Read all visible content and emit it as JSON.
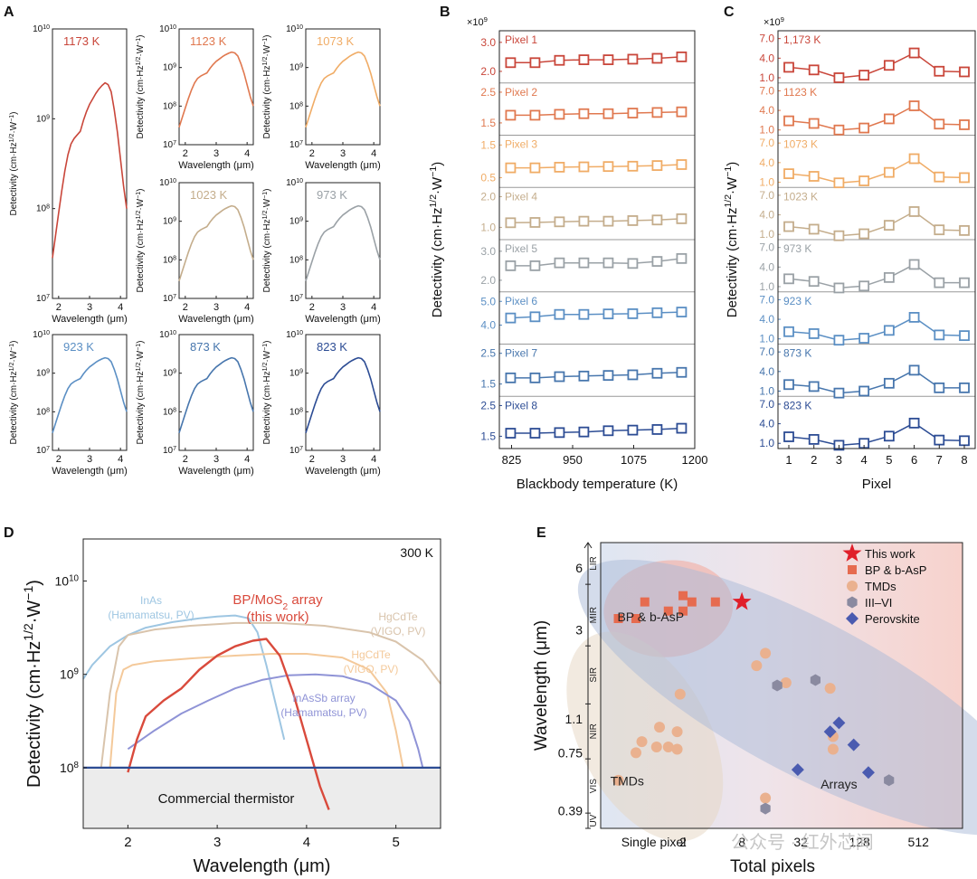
{
  "colors": {
    "k1173": "#c9463a",
    "k1123": "#e0784f",
    "k1073": "#f0ac66",
    "k1023": "#c4ad8c",
    "k973": "#9aa1a6",
    "k923": "#5b8fc4",
    "k873": "#4776ad",
    "k823": "#2c4c94"
  },
  "panel_letters": [
    "A",
    "B",
    "C",
    "D",
    "E"
  ],
  "watermark": "公众号 · 红外芯闻",
  "chart_data": [
    {
      "panel": "A",
      "type": "line",
      "xlabel": "Wavelength (μm)",
      "ylabel": "Detectivity (cm·Hz1/2·W−1)",
      "ylabel_main": "Detectivity (cm·Hz",
      "ylabel_sup1": "1/2",
      "ylabel_mid": "·W",
      "ylabel_sup2": "−1",
      "ylabel_end": ")",
      "xlim": [
        1.8,
        4.2
      ],
      "ylim_log": [
        7,
        10
      ],
      "xticks": [
        "2",
        "3",
        "4"
      ],
      "yticks": [
        "10",
        "10",
        "10",
        "10"
      ],
      "ytick_exps": [
        "7",
        "8",
        "9",
        "10"
      ],
      "ytick_log": [
        7,
        8,
        9,
        10
      ],
      "curve": {
        "x": [
          1.8,
          1.9,
          2.0,
          2.1,
          2.2,
          2.3,
          2.4,
          2.5,
          2.6,
          2.7,
          2.8,
          2.9,
          3.0,
          3.1,
          3.2,
          3.3,
          3.4,
          3.5,
          3.6,
          3.7,
          3.8,
          3.9,
          4.0,
          4.1,
          4.2
        ],
        "log": [
          7.45,
          7.7,
          7.95,
          8.2,
          8.42,
          8.6,
          8.72,
          8.78,
          8.82,
          8.86,
          8.98,
          9.08,
          9.16,
          9.22,
          9.28,
          9.33,
          9.37,
          9.4,
          9.38,
          9.3,
          9.1,
          8.85,
          8.55,
          8.25,
          8.0
        ]
      },
      "subplots": [
        {
          "label": "1173 K",
          "color": "#c9463a"
        },
        {
          "label": "1123 K",
          "color": "#e0784f"
        },
        {
          "label": "1073 K",
          "color": "#f0ac66"
        },
        {
          "label": "1023 K",
          "color": "#c4ad8c"
        },
        {
          "label": "973 K",
          "color": "#9aa1a6"
        },
        {
          "label": "923 K",
          "color": "#5b8fc4"
        },
        {
          "label": "873 K",
          "color": "#4776ad"
        },
        {
          "label": "823 K",
          "color": "#2c4c94"
        }
      ]
    },
    {
      "panel": "B",
      "type": "line",
      "xlabel": "Blackbody temperature (K)",
      "ylabel": "Detectivity (cm·Hz1/2·W−1)",
      "multiplier": "×10",
      "multiplier_exp": "9",
      "xlim": [
        800,
        1200
      ],
      "xticks": [
        825,
        950,
        1075,
        1200
      ],
      "x": [
        823,
        873,
        923,
        973,
        1023,
        1073,
        1123,
        1173
      ],
      "series": [
        {
          "name": "Pixel 1",
          "color": "#c9463a",
          "ylim": [
            1.6,
            3.4
          ],
          "yticks": [
            "3.0",
            "2.0"
          ],
          "ytick_vals": [
            3.0,
            2.0
          ],
          "values": [
            2.3,
            2.3,
            2.38,
            2.4,
            2.4,
            2.42,
            2.45,
            2.5
          ]
        },
        {
          "name": "Pixel 2",
          "color": "#e0784f",
          "ylim": [
            1.1,
            2.8
          ],
          "yticks": [
            "2.5",
            "1.5"
          ],
          "ytick_vals": [
            2.5,
            1.5
          ],
          "values": [
            1.75,
            1.75,
            1.78,
            1.8,
            1.8,
            1.82,
            1.84,
            1.86
          ]
        },
        {
          "name": "Pixel 3",
          "color": "#f0ac66",
          "ylim": [
            0.2,
            1.8
          ],
          "yticks": [
            "1.5",
            "0.5"
          ],
          "ytick_vals": [
            1.5,
            0.5
          ],
          "values": [
            0.8,
            0.8,
            0.82,
            0.83,
            0.84,
            0.85,
            0.87,
            0.9
          ]
        },
        {
          "name": "Pixel 4",
          "color": "#c4ad8c",
          "ylim": [
            0.6,
            2.3
          ],
          "yticks": [
            "2.0",
            "1.0"
          ],
          "ytick_vals": [
            2.0,
            1.0
          ],
          "values": [
            1.15,
            1.16,
            1.18,
            1.2,
            1.2,
            1.22,
            1.24,
            1.28
          ]
        },
        {
          "name": "Pixel 5",
          "color": "#9aa1a6",
          "ylim": [
            1.6,
            3.4
          ],
          "yticks": [
            "3.0",
            "2.0"
          ],
          "ytick_vals": [
            3.0,
            2.0
          ],
          "values": [
            2.5,
            2.5,
            2.6,
            2.6,
            2.6,
            2.58,
            2.65,
            2.75
          ]
        },
        {
          "name": "Pixel 6",
          "color": "#5b8fc4",
          "ylim": [
            3.2,
            5.4
          ],
          "yticks": [
            "5.0",
            "4.0"
          ],
          "ytick_vals": [
            5.0,
            4.0
          ],
          "values": [
            4.3,
            4.35,
            4.45,
            4.45,
            4.47,
            4.48,
            4.52,
            4.55
          ]
        },
        {
          "name": "Pixel 7",
          "color": "#4776ad",
          "ylim": [
            1.1,
            2.8
          ],
          "yticks": [
            "2.5",
            "1.5"
          ],
          "ytick_vals": [
            2.5,
            1.5
          ],
          "values": [
            1.7,
            1.7,
            1.74,
            1.76,
            1.78,
            1.8,
            1.85,
            1.88
          ]
        },
        {
          "name": "Pixel 8",
          "color": "#2c4c94",
          "ylim": [
            1.1,
            2.8
          ],
          "yticks": [
            "2.5",
            "1.5"
          ],
          "ytick_vals": [
            2.5,
            1.5
          ],
          "values": [
            1.6,
            1.6,
            1.62,
            1.64,
            1.68,
            1.7,
            1.72,
            1.76
          ]
        }
      ]
    },
    {
      "panel": "C",
      "type": "line",
      "xlabel": "Pixel",
      "ylabel": "Detectivity (cm·Hz1/2·W−1)",
      "multiplier": "×10",
      "multiplier_exp": "9",
      "x": [
        1,
        2,
        3,
        4,
        5,
        6,
        7,
        8
      ],
      "xticks": [
        "1",
        "2",
        "3",
        "4",
        "5",
        "6",
        "7",
        "8"
      ],
      "ylim": [
        0.2,
        8.2
      ],
      "yticks": [
        "7.0",
        "4.0",
        "1.0"
      ],
      "ytick_vals": [
        7.0,
        4.0,
        1.0
      ],
      "series": [
        {
          "name": "1,173 K",
          "color": "#c9463a",
          "values": [
            2.6,
            2.2,
            1.0,
            1.4,
            2.9,
            4.8,
            2.0,
            1.9
          ]
        },
        {
          "name": "1123 K",
          "color": "#e0784f",
          "values": [
            2.4,
            2.0,
            1.0,
            1.3,
            2.7,
            4.7,
            1.9,
            1.8
          ]
        },
        {
          "name": "1073 K",
          "color": "#f0ac66",
          "values": [
            2.3,
            1.9,
            0.9,
            1.2,
            2.5,
            4.6,
            1.8,
            1.7
          ]
        },
        {
          "name": "1023 K",
          "color": "#c4ad8c",
          "values": [
            2.2,
            1.8,
            0.8,
            1.1,
            2.4,
            4.5,
            1.7,
            1.6
          ]
        },
        {
          "name": "973 K",
          "color": "#9aa1a6",
          "values": [
            2.2,
            1.8,
            0.8,
            1.1,
            2.4,
            4.4,
            1.6,
            1.6
          ]
        },
        {
          "name": "923 K",
          "color": "#5b8fc4",
          "values": [
            2.1,
            1.8,
            0.8,
            1.1,
            2.3,
            4.3,
            1.6,
            1.5
          ]
        },
        {
          "name": "873 K",
          "color": "#4776ad",
          "values": [
            2.0,
            1.7,
            0.7,
            1.0,
            2.2,
            4.2,
            1.5,
            1.5
          ]
        },
        {
          "name": "823 K",
          "color": "#2c4c94",
          "values": [
            2.0,
            1.6,
            0.7,
            1.0,
            2.1,
            4.1,
            1.5,
            1.4
          ]
        }
      ]
    },
    {
      "panel": "D",
      "type": "line",
      "xlabel": "Wavelength (μm)",
      "ylabel_main": "Detectivity (cm·Hz",
      "ylabel_sup1": "1/2",
      "ylabel_mid": "·W",
      "ylabel_sup2": "−1",
      "ylabel_end": ")",
      "temperature": "300 K",
      "xlim": [
        1.5,
        5.5
      ],
      "ylim_log": [
        7.35,
        10.45
      ],
      "xticks": [
        "2",
        "3",
        "4",
        "5"
      ],
      "xtick_vals": [
        2,
        3,
        4,
        5
      ],
      "yticks": [
        "10",
        "10",
        "10"
      ],
      "ytick_exps": [
        "8",
        "9",
        "10"
      ],
      "ytick_log": [
        8,
        9,
        10
      ],
      "thermistor_label": "Commercial thermistor",
      "thermistor_log": 8.0,
      "series": [
        {
          "name": "InAs (Hamamatsu, PV)",
          "label1": "InAs",
          "label2": "(Hamamatsu, PV)",
          "color": "#9ec6e2",
          "x": [
            1.5,
            1.6,
            1.8,
            2.0,
            2.2,
            2.5,
            2.8,
            3.0,
            3.2,
            3.35,
            3.45,
            3.55,
            3.65,
            3.75
          ],
          "log": [
            8.95,
            9.1,
            9.3,
            9.42,
            9.5,
            9.56,
            9.6,
            9.62,
            9.63,
            9.6,
            9.45,
            9.1,
            8.7,
            8.3
          ]
        },
        {
          "name": "HgCdTe (VIGO, PV) upper",
          "label1": "HgCdTe",
          "label2": "(VIGO, PV)",
          "color": "#d9c4ac",
          "x": [
            1.7,
            1.8,
            1.9,
            2.0,
            2.3,
            2.7,
            3.2,
            3.7,
            4.2,
            4.7,
            5.0,
            5.3,
            5.5
          ],
          "log": [
            8.0,
            8.8,
            9.3,
            9.42,
            9.48,
            9.52,
            9.55,
            9.55,
            9.52,
            9.45,
            9.35,
            9.15,
            8.9
          ]
        },
        {
          "name": "HgCdTe (VIGO, PV) lower",
          "label1": "HgCdTe",
          "label2": "(VIGO, PV)",
          "color": "#f4c99a",
          "x": [
            1.8,
            1.87,
            1.95,
            2.05,
            2.3,
            2.7,
            3.2,
            3.6,
            4.0,
            4.4,
            4.7,
            4.9,
            5.0,
            5.08
          ],
          "log": [
            8.0,
            8.8,
            9.05,
            9.1,
            9.14,
            9.17,
            9.2,
            9.22,
            9.22,
            9.18,
            9.05,
            8.8,
            8.4,
            8.0
          ]
        },
        {
          "name": "InAsSb array (Hamamatsu, PV)",
          "label1": "InAsSb array",
          "label2": "(Hamamatsu, PV)",
          "color": "#8f93d6",
          "x": [
            2.0,
            2.3,
            2.6,
            2.9,
            3.2,
            3.5,
            3.8,
            4.1,
            4.4,
            4.7,
            5.0,
            5.15,
            5.25,
            5.3
          ],
          "log": [
            8.2,
            8.4,
            8.58,
            8.72,
            8.85,
            8.94,
            8.99,
            9.0,
            8.98,
            8.9,
            8.72,
            8.5,
            8.2,
            8.0
          ]
        },
        {
          "name": "BP/MoS2 array (this work)",
          "label1": "BP/MoS",
          "label1_sub": "2",
          "label1_end": " array",
          "label2": "(this work)",
          "color": "#d94a3c",
          "x": [
            2.0,
            2.1,
            2.2,
            2.4,
            2.6,
            2.8,
            3.0,
            3.2,
            3.4,
            3.55,
            3.7,
            3.85,
            4.0,
            4.15,
            4.25
          ],
          "log": [
            7.95,
            8.3,
            8.55,
            8.72,
            8.85,
            9.05,
            9.2,
            9.3,
            9.36,
            9.38,
            9.2,
            8.8,
            8.3,
            7.8,
            7.55
          ]
        }
      ]
    },
    {
      "panel": "E",
      "type": "scatter",
      "xlabel": "Total pixels",
      "ylabel": "Wavelength (μm)",
      "xtick_labels": [
        "Single pixel",
        "2",
        "8",
        "32",
        "128",
        "512"
      ],
      "xtick_pos": [
        0,
        1,
        3,
        5,
        7,
        9
      ],
      "xlim": [
        -1.8,
        10.5
      ],
      "ytick_labels": [
        "6",
        "3",
        "1.1",
        "0.75",
        "0.39"
      ],
      "ytick_vals": [
        6,
        3,
        1.1,
        0.75,
        0.39
      ],
      "ylim": [
        0.32,
        8.0
      ],
      "bands": [
        {
          "label": "LIR",
          "from": 5.0,
          "to": 8.0
        },
        {
          "label": "MIR",
          "from": 2.5,
          "to": 5.0
        },
        {
          "label": "SIR",
          "from": 1.3,
          "to": 2.5
        },
        {
          "label": "NIR",
          "from": 0.7,
          "to": 1.3
        },
        {
          "label": "VIS",
          "from": 0.38,
          "to": 0.7
        },
        {
          "label": "UV",
          "from": 0.32,
          "to": 0.38
        }
      ],
      "legend_position": "top-right",
      "groups": [
        {
          "name": "BP & b-AsP",
          "label": "BP & b-AsP",
          "color": "#f5a291",
          "center": [
            0.5,
            3.8
          ],
          "radii": [
            2.2,
            0.17
          ]
        },
        {
          "name": "TMDs",
          "label": "TMDs",
          "color": "#e6d6c2",
          "center": [
            -0.3,
            0.9
          ],
          "radii": [
            2.2,
            0.4
          ]
        },
        {
          "name": "Arrays",
          "label": "Arrays",
          "color": "#a9b9d8",
          "center": [
            5.2,
            1.4
          ],
          "radii": [
            2.6,
            0.9
          ]
        }
      ],
      "series": [
        {
          "name": "This work",
          "marker": "star",
          "color": "#e01f2a",
          "points": [
            [
              3.0,
              4.1
            ]
          ]
        },
        {
          "name": "BP & b-AsP",
          "marker": "square",
          "color": "#e66b4f",
          "points": [
            [
              -1.2,
              3.4
            ],
            [
              -0.6,
              3.4
            ],
            [
              -0.3,
              4.1
            ],
            [
              0.5,
              3.7
            ],
            [
              1.0,
              3.7
            ],
            [
              1.0,
              4.4
            ],
            [
              1.3,
              4.1
            ],
            [
              2.1,
              4.1
            ]
          ]
        },
        {
          "name": "TMDs",
          "marker": "circle",
          "color": "#eab18f",
          "points": [
            [
              -1.2,
              0.55
            ],
            [
              -0.6,
              0.75
            ],
            [
              -0.4,
              0.85
            ],
            [
              0.1,
              0.8
            ],
            [
              0.2,
              1.0
            ],
            [
              0.5,
              0.8
            ],
            [
              0.8,
              0.95
            ],
            [
              0.8,
              0.78
            ],
            [
              0.9,
              1.45
            ],
            [
              3.8,
              2.3
            ],
            [
              3.5,
              2.0
            ],
            [
              4.5,
              1.65
            ],
            [
              6.0,
              1.55
            ],
            [
              6.1,
              0.9
            ],
            [
              6.1,
              0.78
            ],
            [
              3.8,
              0.45
            ]
          ]
        },
        {
          "name": "III–VI",
          "marker": "hexagon",
          "color": "#8a8aa0",
          "points": [
            [
              4.2,
              1.6
            ],
            [
              5.5,
              1.7
            ],
            [
              3.8,
              0.4
            ],
            [
              8.0,
              0.55
            ]
          ]
        },
        {
          "name": "Perovskite",
          "marker": "diamond",
          "color": "#4a5bb0",
          "points": [
            [
              6.3,
              1.05
            ],
            [
              6.8,
              0.82
            ],
            [
              7.3,
              0.6
            ],
            [
              4.9,
              0.62
            ],
            [
              6.0,
              0.95
            ]
          ]
        }
      ]
    }
  ]
}
